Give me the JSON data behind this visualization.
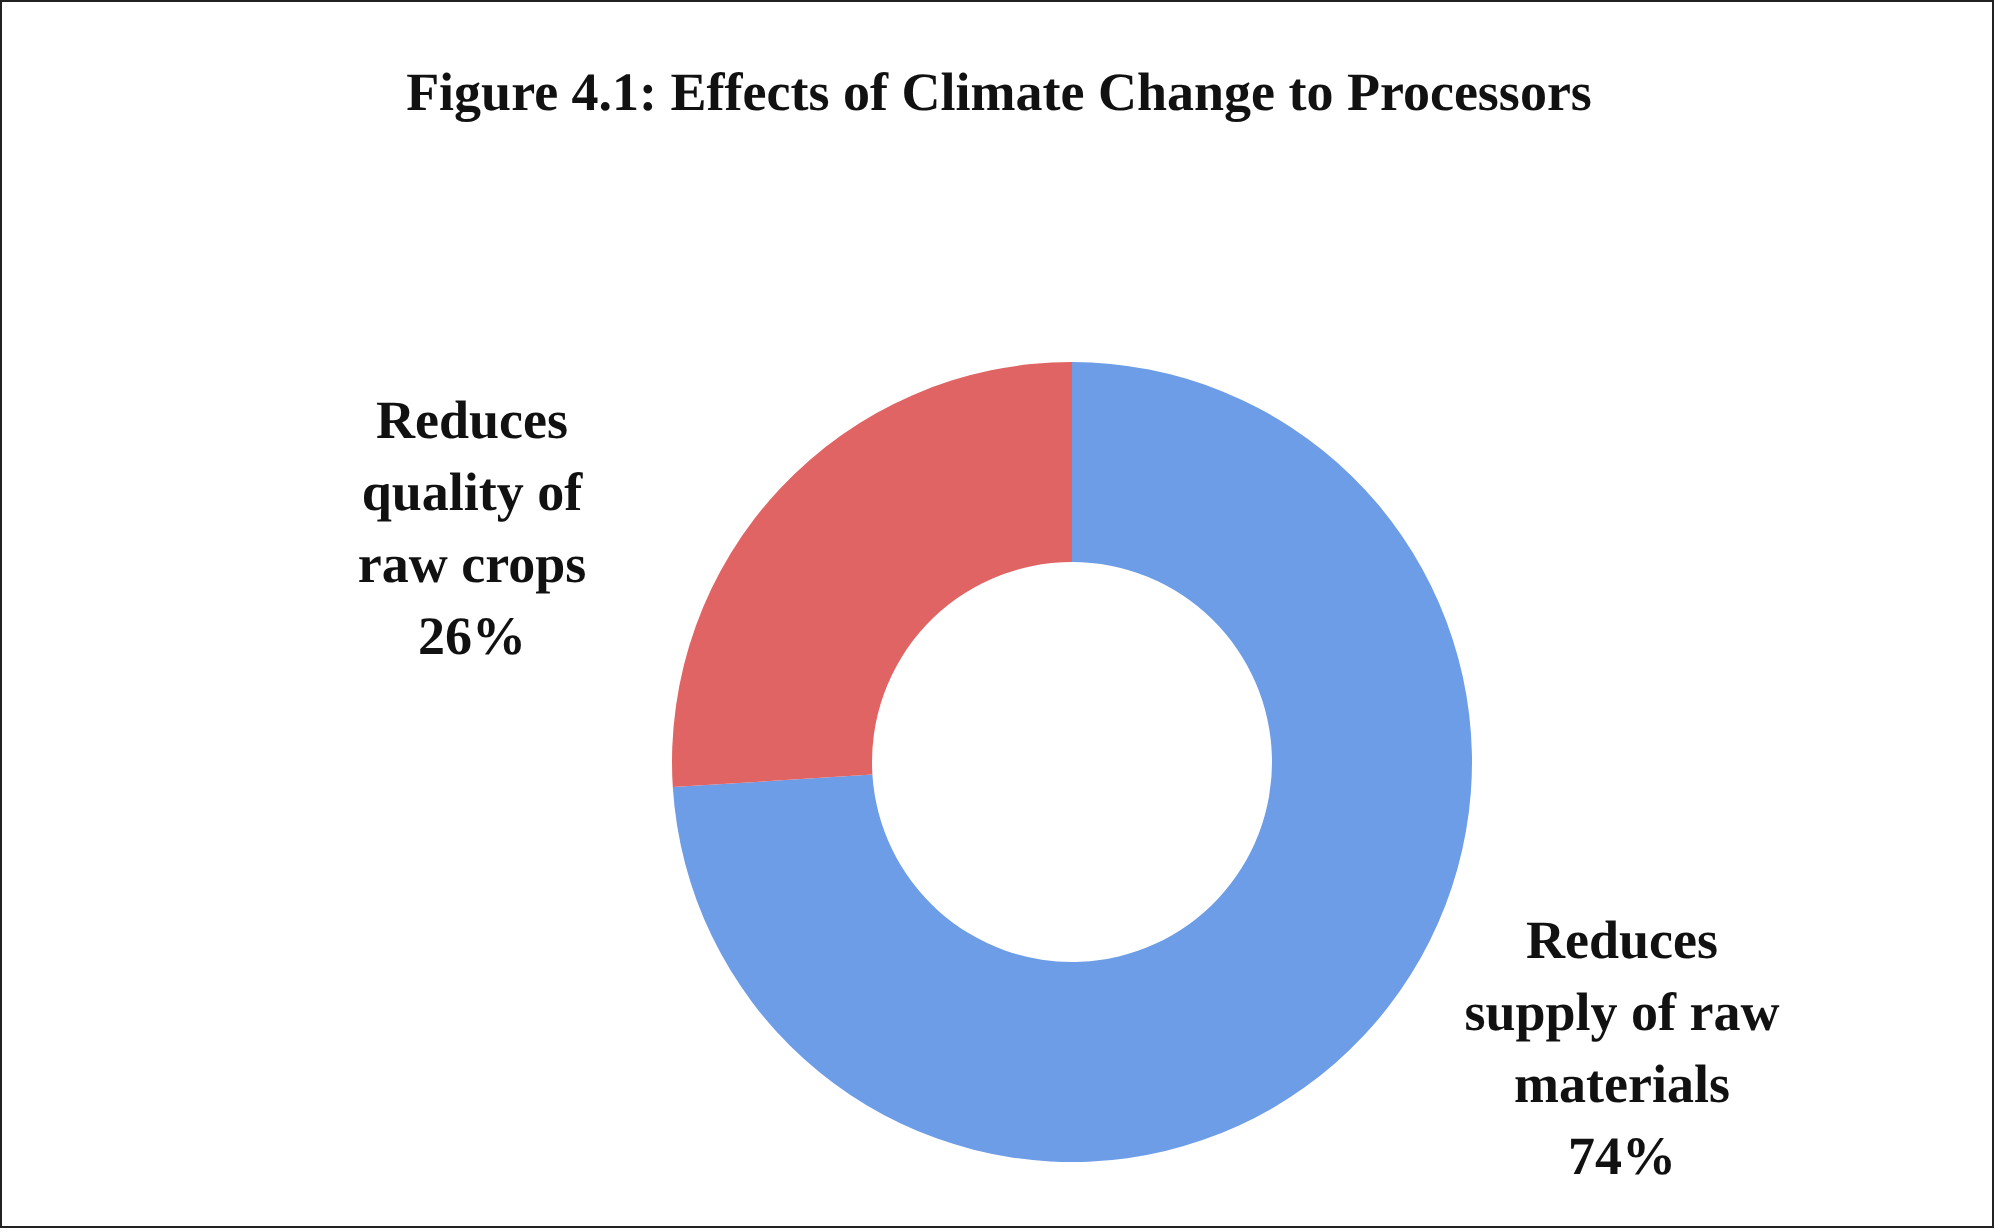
{
  "chart_data": {
    "type": "donut",
    "title": "Figure 4.1: Effects of Climate Change to Processors",
    "categories": [
      "Reduces supply of raw materials",
      "Reduces quality of raw crops"
    ],
    "values": [
      74,
      26
    ],
    "value_labels": [
      "74%",
      "26%"
    ],
    "colors": [
      "#6d9de6",
      "#e06464"
    ],
    "legend": false
  }
}
